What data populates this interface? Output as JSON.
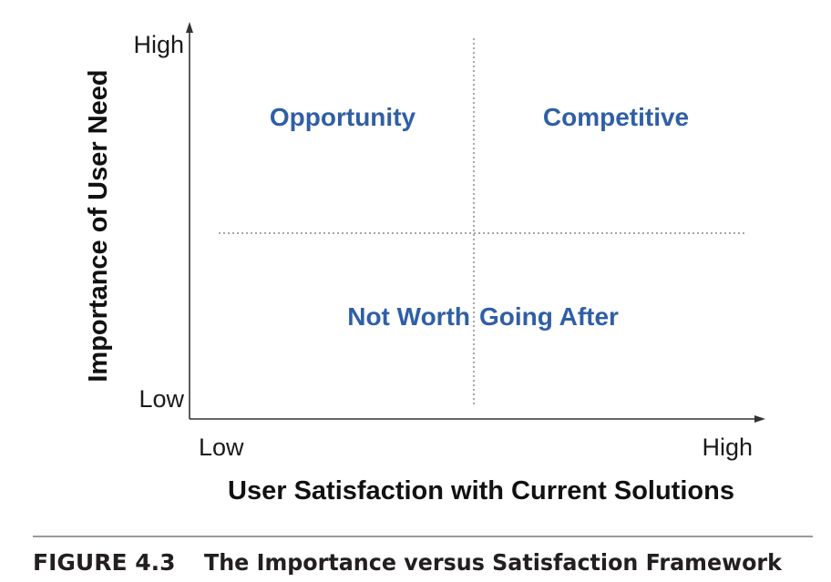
{
  "axes": {
    "y_title": "Importance of User Need",
    "y_high": "High",
    "y_low": "Low",
    "x_title": "User Satisfaction with Current Solutions",
    "x_low": "Low",
    "x_high": "High"
  },
  "quadrants": {
    "top_left": "Opportunity",
    "top_right": "Competitive",
    "bottom_left": "Not Worth",
    "bottom_right": "Going After"
  },
  "caption": {
    "number": "FIGURE 4.3",
    "title": "The Importance versus Satisfaction Framework"
  },
  "colors": {
    "quadrant_text": "#2f5fa6",
    "axis": "#333333",
    "divider": "#8a8a8a"
  }
}
